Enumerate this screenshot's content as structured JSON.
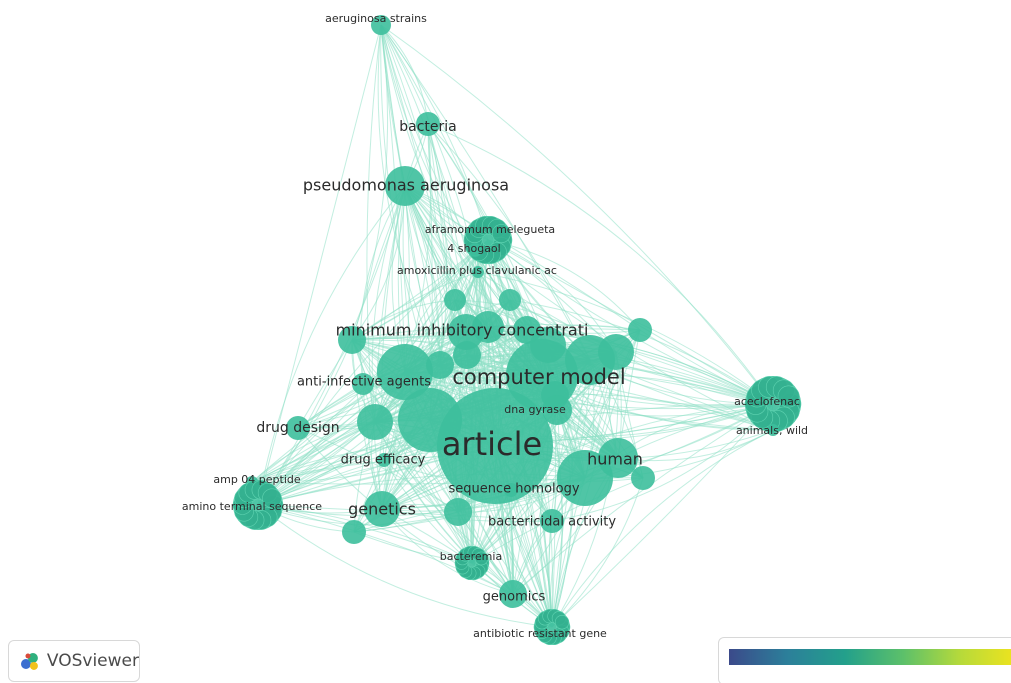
{
  "brand": {
    "name": "VOSviewer",
    "logo_icon": "vosviewer-logo-icon"
  },
  "legend": {
    "colors": [
      "#3b4a8a",
      "#2c7f9a",
      "#23a08b",
      "#5cc06a",
      "#b7da3a",
      "#f2e41c"
    ]
  },
  "node_color": "#3dbf9c",
  "edge_color": "#8fe0c7",
  "labeled_nodes": [
    {
      "id": "n1",
      "label": "aeruginosa strains"
    },
    {
      "id": "n2",
      "label": "bacteria"
    },
    {
      "id": "n3",
      "label": "pseudomonas aeruginosa"
    },
    {
      "id": "n4",
      "label": "aframomum melegueta"
    },
    {
      "id": "n5",
      "label": "4 shogaol"
    },
    {
      "id": "n6",
      "label": "amoxicillin plus clavulanic ac"
    },
    {
      "id": "n7",
      "label": "minimum inhibitory concentrati"
    },
    {
      "id": "n8",
      "label": "computer model"
    },
    {
      "id": "n9",
      "label": "anti-infective agents"
    },
    {
      "id": "n10",
      "label": "dna gyrase"
    },
    {
      "id": "n11",
      "label": "aceclofenac"
    },
    {
      "id": "n12",
      "label": "animals, wild"
    },
    {
      "id": "n13",
      "label": "drug design"
    },
    {
      "id": "n14",
      "label": "article"
    },
    {
      "id": "n15",
      "label": "human"
    },
    {
      "id": "n16",
      "label": "drug efficacy"
    },
    {
      "id": "n17",
      "label": "amp 04 peptide"
    },
    {
      "id": "n18",
      "label": "sequence homology"
    },
    {
      "id": "n19",
      "label": "amino terminal sequence"
    },
    {
      "id": "n20",
      "label": "genetics"
    },
    {
      "id": "n21",
      "label": "bactericidal activity"
    },
    {
      "id": "n22",
      "label": "bacteremia"
    },
    {
      "id": "n23",
      "label": "genomics"
    },
    {
      "id": "n24",
      "label": "antibiotic resistant gene"
    }
  ]
}
